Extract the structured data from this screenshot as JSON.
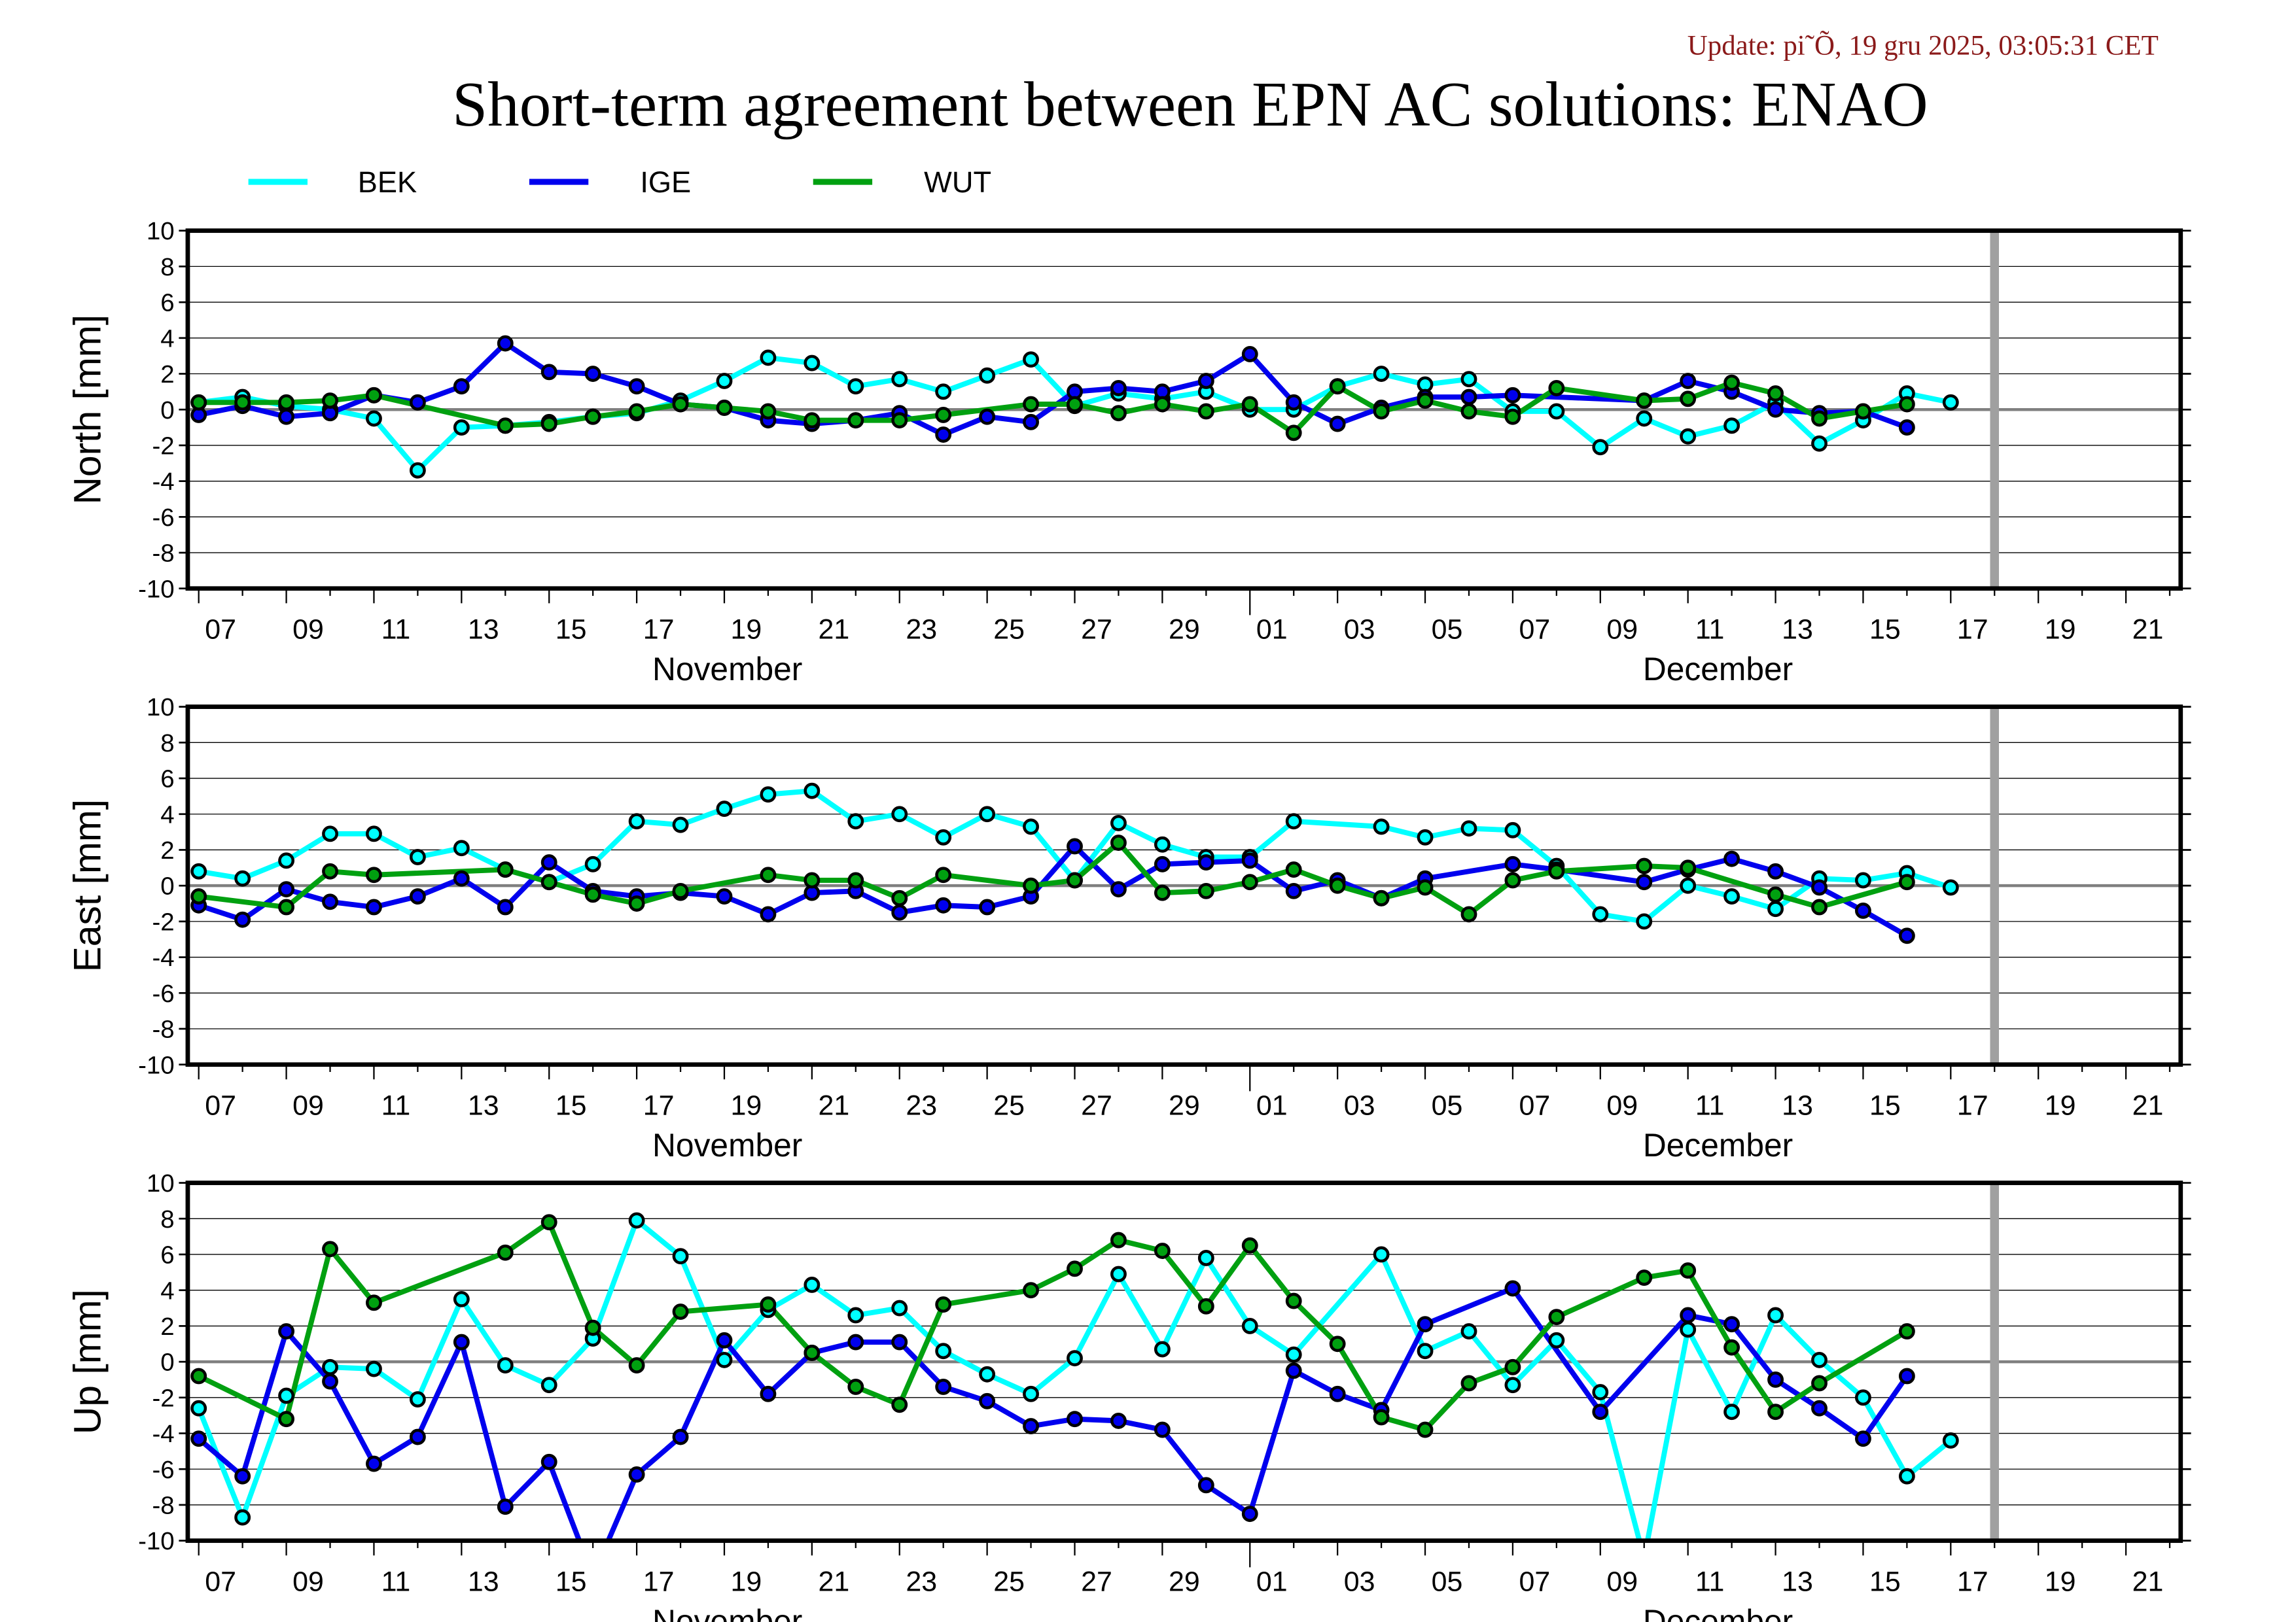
{
  "update_text": "Update: pi˜Õ, 19 gru 2025, 03:05:31 CET",
  "title": "Short-term agreement between EPN AC solutions: ENAO",
  "legend": [
    {
      "name": "BEK",
      "color": "#00ffff"
    },
    {
      "name": "IGE",
      "color": "#0000ee"
    },
    {
      "name": "WUT",
      "color": "#00a010"
    }
  ],
  "x_axis": {
    "xlim": [
      "2025-11-06T18:00:00Z",
      "2025-12-22T06:00:00Z"
    ],
    "tick_labels": [
      "07",
      "09",
      "11",
      "13",
      "15",
      "17",
      "19",
      "21",
      "23",
      "25",
      "27",
      "29",
      "01",
      "03",
      "05",
      "07",
      "09",
      "11",
      "13",
      "15",
      "17",
      "19",
      "21"
    ],
    "tick_dates": [
      "2025-11-07",
      "2025-11-09",
      "2025-11-11",
      "2025-11-13",
      "2025-11-15",
      "2025-11-17",
      "2025-11-19",
      "2025-11-21",
      "2025-11-23",
      "2025-11-25",
      "2025-11-27",
      "2025-11-29",
      "2025-12-01",
      "2025-12-03",
      "2025-12-05",
      "2025-12-07",
      "2025-12-09",
      "2025-12-11",
      "2025-12-13",
      "2025-12-15",
      "2025-12-17",
      "2025-12-19",
      "2025-12-21"
    ],
    "month_labels": [
      "November",
      "December"
    ],
    "current_marker_date": "2025-12-18",
    "marker_color": "#a0a0a0"
  },
  "chart_data": [
    {
      "type": "line",
      "ylabel": "North [mm]",
      "ylim": [
        -10,
        10
      ],
      "yticks": [
        10,
        8,
        6,
        4,
        2,
        0,
        -2,
        -4,
        -6,
        -8,
        -10
      ],
      "grid": true,
      "legend_position": "top",
      "x": [
        "2025-11-07",
        "2025-11-08",
        "2025-11-09",
        "2025-11-10",
        "2025-11-11",
        "2025-11-12",
        "2025-11-13",
        "2025-11-14",
        "2025-11-15",
        "2025-11-16",
        "2025-11-17",
        "2025-11-18",
        "2025-11-19",
        "2025-11-20",
        "2025-11-21",
        "2025-11-22",
        "2025-11-23",
        "2025-11-24",
        "2025-11-25",
        "2025-11-26",
        "2025-11-27",
        "2025-11-28",
        "2025-11-29",
        "2025-11-30",
        "2025-12-01",
        "2025-12-02",
        "2025-12-03",
        "2025-12-04",
        "2025-12-05",
        "2025-12-06",
        "2025-12-07",
        "2025-12-08",
        "2025-12-09",
        "2025-12-10",
        "2025-12-11",
        "2025-12-12",
        "2025-12-13",
        "2025-12-14",
        "2025-12-15",
        "2025-12-16",
        "2025-12-17"
      ],
      "series": [
        {
          "name": "BEK",
          "values": [
            0.4,
            0.7,
            0.2,
            0.0,
            -0.5,
            -3.4,
            -1.0,
            -0.9,
            -0.7,
            -0.4,
            -0.2,
            0.5,
            1.6,
            2.9,
            2.6,
            1.3,
            1.7,
            1.0,
            1.9,
            2.8,
            0.2,
            0.9,
            0.6,
            1.0,
            0.0,
            0.0,
            1.3,
            2.0,
            1.4,
            1.7,
            -0.1,
            -0.1,
            -2.1,
            -0.5,
            -1.5,
            -0.9,
            0.4,
            -1.9,
            -0.6,
            0.9,
            0.4
          ]
        },
        {
          "name": "IGE",
          "values": [
            -0.3,
            0.2,
            -0.4,
            -0.2,
            0.8,
            0.4,
            1.3,
            3.7,
            2.1,
            2.0,
            1.3,
            0.3,
            0.1,
            -0.6,
            -0.8,
            -0.6,
            -0.2,
            -1.4,
            -0.4,
            -0.7,
            1.0,
            1.2,
            1.0,
            1.6,
            3.1,
            0.4,
            -0.8,
            0.1,
            0.7,
            0.7,
            0.8,
            null,
            null,
            0.5,
            1.6,
            1.0,
            0.0,
            -0.2,
            -0.1,
            -1.0,
            null
          ]
        },
        {
          "name": "WUT",
          "values": [
            0.4,
            0.4,
            0.4,
            0.5,
            0.8,
            null,
            null,
            -0.9,
            -0.8,
            -0.4,
            -0.1,
            0.3,
            0.1,
            -0.1,
            -0.6,
            -0.6,
            -0.6,
            -0.3,
            null,
            0.3,
            0.3,
            -0.2,
            0.3,
            -0.1,
            0.3,
            -1.3,
            1.3,
            -0.1,
            0.5,
            -0.1,
            -0.4,
            1.2,
            null,
            0.5,
            0.6,
            1.5,
            0.9,
            -0.5,
            -0.1,
            0.3,
            null
          ]
        }
      ]
    },
    {
      "type": "line",
      "ylabel": "East [mm]",
      "ylim": [
        -10,
        10
      ],
      "yticks": [
        10,
        8,
        6,
        4,
        2,
        0,
        -2,
        -4,
        -6,
        -8,
        -10
      ],
      "grid": true,
      "x": [
        "2025-11-07",
        "2025-11-08",
        "2025-11-09",
        "2025-11-10",
        "2025-11-11",
        "2025-11-12",
        "2025-11-13",
        "2025-11-14",
        "2025-11-15",
        "2025-11-16",
        "2025-11-17",
        "2025-11-18",
        "2025-11-19",
        "2025-11-20",
        "2025-11-21",
        "2025-11-22",
        "2025-11-23",
        "2025-11-24",
        "2025-11-25",
        "2025-11-26",
        "2025-11-27",
        "2025-11-28",
        "2025-11-29",
        "2025-11-30",
        "2025-12-01",
        "2025-12-02",
        "2025-12-03",
        "2025-12-04",
        "2025-12-05",
        "2025-12-06",
        "2025-12-07",
        "2025-12-08",
        "2025-12-09",
        "2025-12-10",
        "2025-12-11",
        "2025-12-12",
        "2025-12-13",
        "2025-12-14",
        "2025-12-15",
        "2025-12-16",
        "2025-12-17"
      ],
      "series": [
        {
          "name": "BEK",
          "values": [
            0.8,
            0.4,
            1.4,
            2.9,
            2.9,
            1.6,
            2.1,
            0.9,
            0.2,
            1.2,
            3.6,
            3.4,
            4.3,
            5.1,
            5.3,
            3.6,
            4.0,
            2.7,
            4.0,
            3.3,
            0.3,
            3.5,
            2.3,
            1.6,
            1.6,
            3.6,
            null,
            3.3,
            2.7,
            3.2,
            3.1,
            1.1,
            -1.6,
            -2.0,
            0.0,
            -0.6,
            -1.3,
            0.4,
            0.3,
            0.7,
            -0.1
          ]
        },
        {
          "name": "IGE",
          "values": [
            -1.1,
            -1.9,
            -0.2,
            -0.9,
            -1.2,
            -0.6,
            0.4,
            -1.2,
            1.3,
            -0.3,
            -0.6,
            -0.4,
            -0.6,
            -1.6,
            -0.4,
            -0.3,
            -1.5,
            -1.1,
            -1.2,
            -0.6,
            2.2,
            -0.2,
            1.2,
            1.3,
            1.4,
            -0.3,
            0.3,
            -0.7,
            0.4,
            null,
            1.2,
            0.9,
            null,
            0.2,
            0.9,
            1.5,
            0.8,
            -0.1,
            -1.4,
            -2.8,
            null
          ]
        },
        {
          "name": "WUT",
          "values": [
            -0.6,
            null,
            -1.2,
            0.8,
            0.6,
            null,
            null,
            0.9,
            0.2,
            -0.5,
            -1.0,
            -0.3,
            null,
            0.6,
            0.3,
            0.3,
            -0.7,
            0.6,
            null,
            0.0,
            0.3,
            2.4,
            -0.4,
            -0.3,
            0.2,
            0.9,
            0.0,
            -0.7,
            -0.1,
            -1.6,
            0.3,
            0.8,
            null,
            1.1,
            1.0,
            null,
            -0.5,
            -1.2,
            null,
            0.2,
            null
          ]
        }
      ]
    },
    {
      "type": "line",
      "ylabel": "Up [mm]",
      "ylim": [
        -10,
        10
      ],
      "yticks": [
        10,
        8,
        6,
        4,
        2,
        0,
        -2,
        -4,
        -6,
        -8,
        -10
      ],
      "grid": true,
      "x": [
        "2025-11-07",
        "2025-11-08",
        "2025-11-09",
        "2025-11-10",
        "2025-11-11",
        "2025-11-12",
        "2025-11-13",
        "2025-11-14",
        "2025-11-15",
        "2025-11-16",
        "2025-11-17",
        "2025-11-18",
        "2025-11-19",
        "2025-11-20",
        "2025-11-21",
        "2025-11-22",
        "2025-11-23",
        "2025-11-24",
        "2025-11-25",
        "2025-11-26",
        "2025-11-27",
        "2025-11-28",
        "2025-11-29",
        "2025-11-30",
        "2025-12-01",
        "2025-12-02",
        "2025-12-03",
        "2025-12-04",
        "2025-12-05",
        "2025-12-06",
        "2025-12-07",
        "2025-12-08",
        "2025-12-09",
        "2025-12-10",
        "2025-12-11",
        "2025-12-12",
        "2025-12-13",
        "2025-12-14",
        "2025-12-15",
        "2025-12-16",
        "2025-12-17"
      ],
      "series": [
        {
          "name": "BEK",
          "values": [
            -2.6,
            -8.7,
            -1.9,
            -0.3,
            -0.4,
            -2.1,
            3.5,
            -0.2,
            -1.3,
            1.3,
            7.9,
            5.9,
            0.1,
            2.9,
            4.3,
            2.6,
            3.0,
            0.6,
            -0.7,
            -1.8,
            0.2,
            4.9,
            0.7,
            5.8,
            2.0,
            0.4,
            null,
            6.0,
            0.6,
            1.7,
            -1.3,
            1.2,
            -1.7,
            -11.0,
            1.8,
            -2.8,
            2.6,
            0.1,
            -2.0,
            -6.4,
            -4.4
          ]
        },
        {
          "name": "IGE",
          "values": [
            -4.3,
            -6.4,
            1.7,
            -1.1,
            -5.7,
            -4.2,
            1.1,
            -8.1,
            -5.6,
            -12.0,
            -6.3,
            -4.2,
            1.2,
            -1.8,
            0.5,
            1.1,
            1.1,
            -1.4,
            -2.2,
            -3.6,
            -3.2,
            -3.3,
            -3.8,
            -6.9,
            -8.5,
            -0.5,
            -1.8,
            -2.7,
            2.1,
            null,
            4.1,
            null,
            -2.8,
            null,
            2.6,
            2.1,
            -1.0,
            -2.6,
            -4.3,
            -0.8,
            null
          ]
        },
        {
          "name": "WUT",
          "values": [
            -0.8,
            null,
            -3.2,
            6.3,
            3.3,
            null,
            null,
            6.1,
            7.8,
            1.9,
            -0.2,
            2.8,
            null,
            3.2,
            0.5,
            -1.4,
            -2.4,
            3.2,
            null,
            4.0,
            5.2,
            6.8,
            6.2,
            3.1,
            6.5,
            3.4,
            1.0,
            -3.1,
            -3.8,
            -1.2,
            -0.3,
            2.5,
            null,
            4.7,
            5.1,
            0.8,
            -2.8,
            -1.2,
            null,
            1.7,
            null
          ]
        }
      ]
    }
  ]
}
